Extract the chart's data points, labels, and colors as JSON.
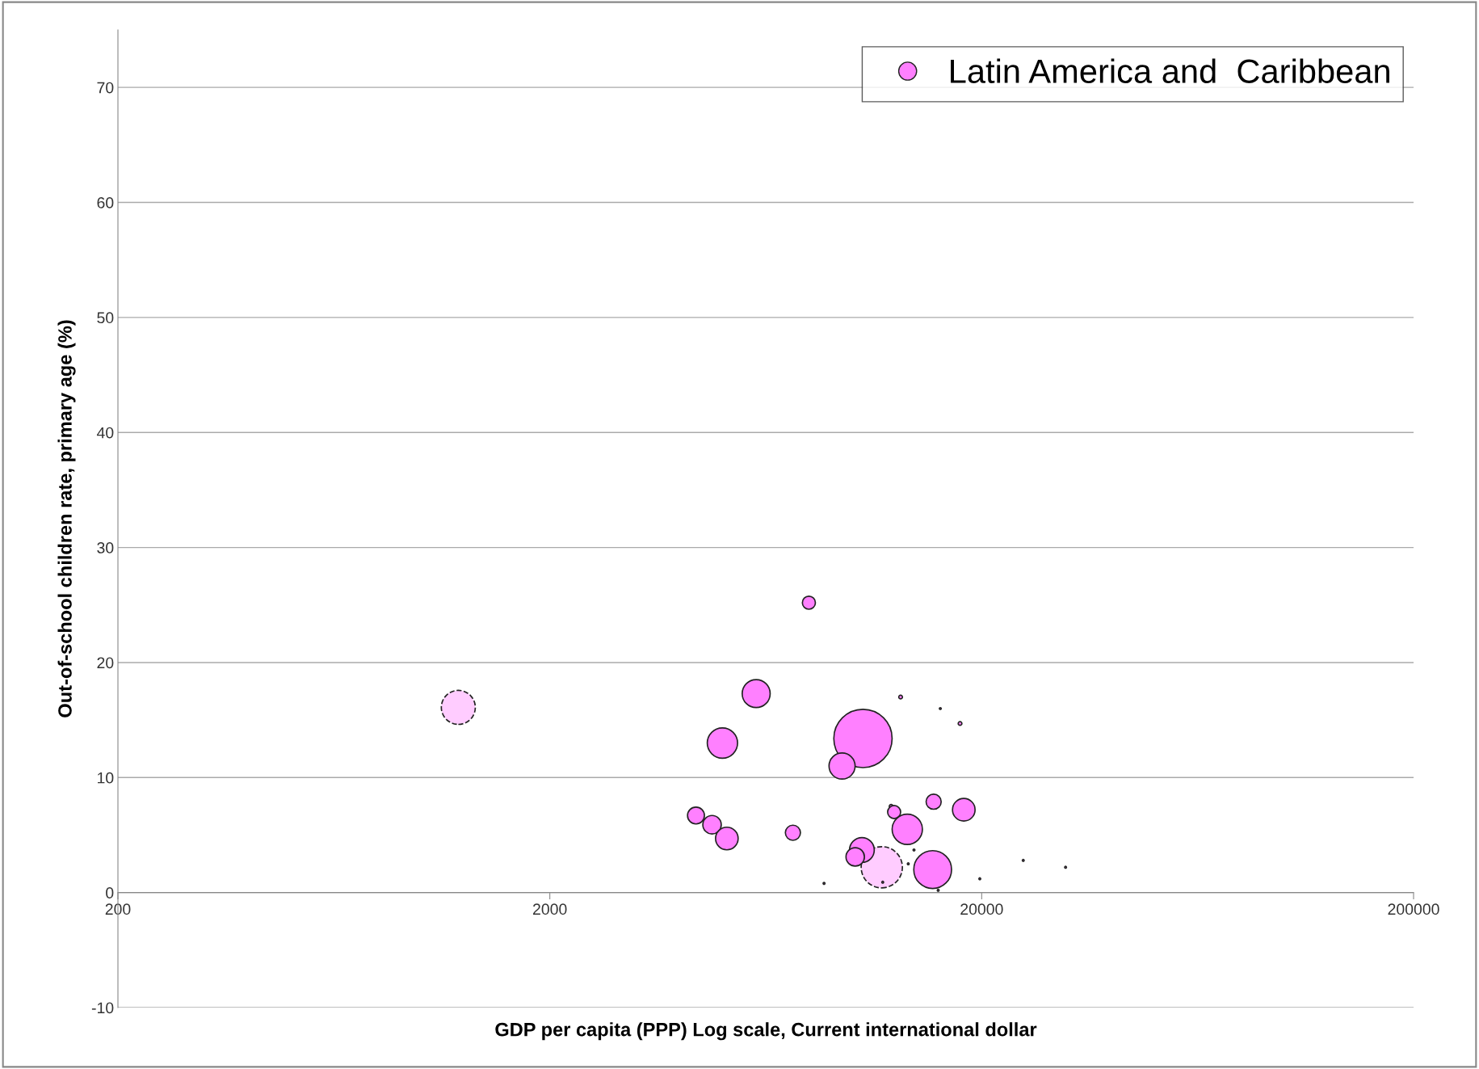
{
  "chart_data": {
    "type": "bubble",
    "xlabel": "GDP per capita (PPP) Log scale, Current international dollar",
    "ylabel": "Out-of-school children rate, primary age (%)",
    "log": "x",
    "xlim": [
      200,
      200000
    ],
    "xticks": [
      200,
      2000,
      20000,
      200000
    ],
    "ylim": [
      -10,
      75
    ],
    "yticks": [
      -10,
      0,
      10,
      20,
      30,
      40,
      50,
      60,
      70
    ],
    "grid": "y",
    "legend": "top right",
    "series": [
      {
        "name": "Latin America and  Caribbean",
        "color": "#ff80ff",
        "line_style": "solid",
        "x": [
          7960,
          6010,
          5020,
          10620,
          9500,
          12980,
          16040,
          17820,
          4360,
          4750,
          5140,
          7310,
          12340,
          12540,
          13450,
          15480,
          18180,
          10560,
          10190,
          15400,
          8630,
          19800,
          24960,
          31280,
          15860,
          13940,
          13520,
          11800
        ],
        "values": [
          25.2,
          17.3,
          13.0,
          13.4,
          11.0,
          17.0,
          16.0,
          14.7,
          6.7,
          5.9,
          4.7,
          5.2,
          7.5,
          7.0,
          5.5,
          7.9,
          7.2,
          3.7,
          3.1,
          2.0,
          0.8,
          1.2,
          2.8,
          2.2,
          0.2,
          3.7,
          2.5,
          0.9
        ],
        "sizes": [
          0.05,
          0.23,
          0.27,
          1,
          0.2,
          0.004,
          0.001,
          0.004,
          0.084,
          0.1,
          0.15,
          0.067,
          0.004,
          0.05,
          0.27,
          0.067,
          0.15,
          0.18,
          0.1,
          0.42,
          0.001,
          0.001,
          0.001,
          0.001,
          0.001,
          0.001,
          0.001,
          0.001
        ]
      },
      {
        "color": "#ffccff",
        "line_style": "dashed",
        "x": [
          1228,
          11740
        ],
        "values": [
          16.1,
          2.2
        ],
        "sizes": [
          0.34,
          0.5
        ]
      }
    ]
  }
}
